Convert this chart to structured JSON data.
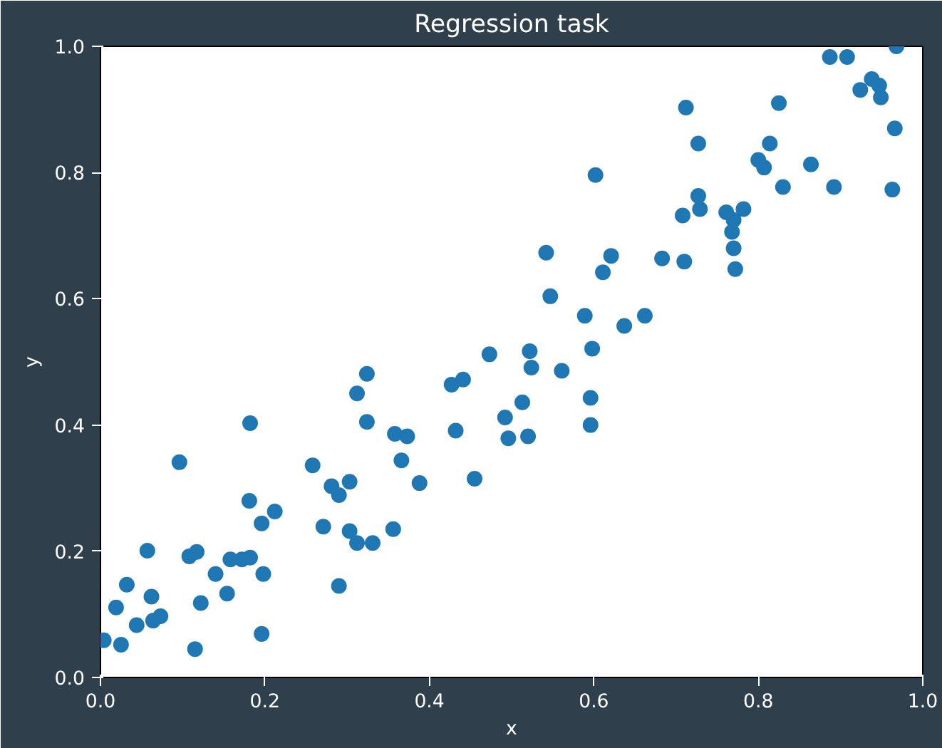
{
  "chart_data": {
    "type": "scatter",
    "title": "Regression task",
    "xlabel": "x",
    "ylabel": "y",
    "xlim": [
      0,
      1
    ],
    "ylim": [
      0,
      1
    ],
    "xticks": [
      {
        "value": 0,
        "label": "0.0"
      },
      0.2,
      0.4,
      0.6,
      0.8,
      {
        "value": 1,
        "label": "1.0"
      }
    ],
    "yticks": [
      {
        "value": 0,
        "label": "0.0"
      },
      0.2,
      0.4,
      0.6,
      0.8,
      {
        "value": 1,
        "label": "1.0"
      }
    ],
    "grid": false,
    "marker": "circle",
    "series": [
      {
        "color": "#1f77b4",
        "x": [
          0.004,
          0.019,
          0.025,
          0.032,
          0.044,
          0.057,
          0.062,
          0.064,
          0.073,
          0.096,
          0.108,
          0.117,
          0.122,
          0.115,
          0.14,
          0.154,
          0.158,
          0.172,
          0.182,
          0.182,
          0.181,
          0.196,
          0.198,
          0.196,
          0.212,
          0.258,
          0.271,
          0.281,
          0.29,
          0.29,
          0.303,
          0.303,
          0.312,
          0.312,
          0.324,
          0.324,
          0.331,
          0.356,
          0.358,
          0.366,
          0.373,
          0.388,
          0.455,
          0.427,
          0.441,
          0.432,
          0.473,
          0.492,
          0.496,
          0.513,
          0.52,
          0.522,
          0.524,
          0.542,
          0.547,
          0.561,
          0.589,
          0.598,
          0.596,
          0.596,
          0.602,
          0.611,
          0.621,
          0.637,
          0.662,
          0.683,
          0.712,
          0.708,
          0.71,
          0.727,
          0.727,
          0.729,
          0.761,
          0.77,
          0.768,
          0.77,
          0.772,
          0.782,
          0.8,
          0.807,
          0.814,
          0.825,
          0.83,
          0.864,
          0.887,
          0.892,
          0.908,
          0.924,
          0.938,
          0.947,
          0.949,
          0.963,
          0.966,
          0.968
        ],
        "values": [
          0.059,
          0.111,
          0.052,
          0.147,
          0.083,
          0.201,
          0.128,
          0.09,
          0.097,
          0.341,
          0.192,
          0.199,
          0.118,
          0.045,
          0.164,
          0.133,
          0.187,
          0.187,
          0.19,
          0.403,
          0.28,
          0.244,
          0.164,
          0.069,
          0.263,
          0.336,
          0.239,
          0.303,
          0.289,
          0.145,
          0.31,
          0.232,
          0.213,
          0.45,
          0.481,
          0.405,
          0.213,
          0.235,
          0.386,
          0.344,
          0.382,
          0.308,
          0.315,
          0.464,
          0.472,
          0.391,
          0.512,
          0.412,
          0.379,
          0.436,
          0.382,
          0.517,
          0.491,
          0.673,
          0.604,
          0.486,
          0.573,
          0.521,
          0.443,
          0.4,
          0.796,
          0.642,
          0.668,
          0.557,
          0.573,
          0.664,
          0.903,
          0.732,
          0.659,
          0.846,
          0.763,
          0.742,
          0.737,
          0.725,
          0.706,
          0.68,
          0.647,
          0.742,
          0.82,
          0.808,
          0.846,
          0.91,
          0.777,
          0.813,
          0.983,
          0.777,
          0.983,
          0.931,
          0.948,
          0.938,
          0.919,
          0.773,
          0.87,
          1.0
        ]
      }
    ]
  }
}
